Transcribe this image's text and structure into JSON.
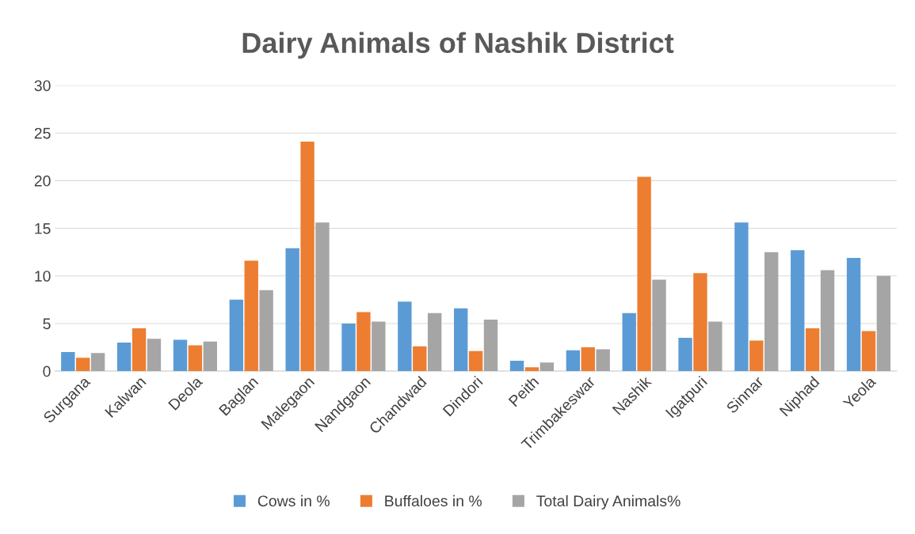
{
  "chart_data": {
    "type": "bar",
    "title": "Dairy Animals of Nashik District",
    "categories": [
      "Surgana",
      "Kalwan",
      "Deola",
      "Baglan",
      "Malegaon",
      "Nandgaon",
      "Chandwad",
      "Dindori",
      "Peith",
      "Trimbakeswar",
      "Nashik",
      "Igatpuri",
      "Sinnar",
      "Niphad",
      "Yeola"
    ],
    "series": [
      {
        "name": "Cows in %",
        "color": "#5b9bd5",
        "values": [
          2.0,
          3.0,
          3.3,
          7.5,
          12.9,
          5.0,
          7.3,
          6.6,
          1.1,
          2.2,
          6.1,
          3.5,
          15.6,
          12.7,
          11.9
        ]
      },
      {
        "name": "Buffaloes in %",
        "color": "#ed7d31",
        "values": [
          1.4,
          4.5,
          2.7,
          11.6,
          24.1,
          6.2,
          2.6,
          2.1,
          0.4,
          2.5,
          20.4,
          10.3,
          3.2,
          4.5,
          4.2
        ]
      },
      {
        "name": "Total Dairy Animals%",
        "color": "#a5a5a5",
        "values": [
          1.9,
          3.4,
          3.1,
          8.5,
          15.6,
          5.2,
          6.1,
          5.4,
          0.9,
          2.3,
          9.6,
          5.2,
          12.5,
          10.6,
          10.0
        ]
      }
    ],
    "ylim": [
      0,
      30
    ],
    "yticks": [
      0,
      5,
      10,
      15,
      20,
      25,
      30
    ],
    "grid": "y",
    "legend": "bottom"
  }
}
